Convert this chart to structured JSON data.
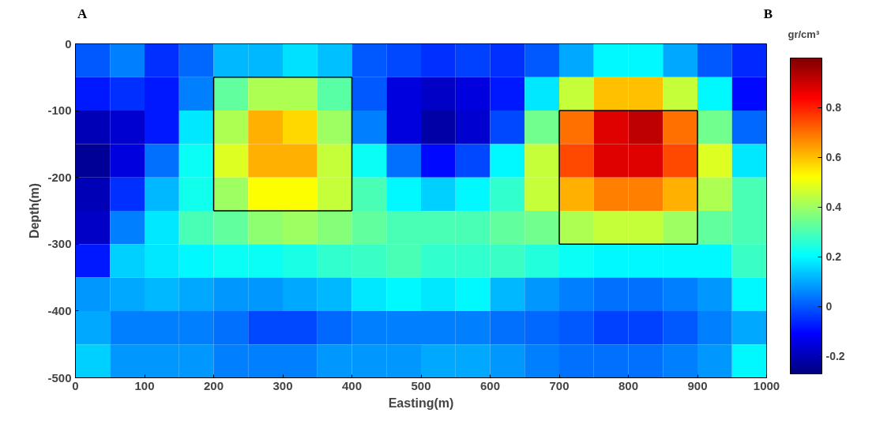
{
  "chart_data": {
    "type": "heatmap",
    "xlabel": "Easting(m)",
    "ylabel": "Depth(m)",
    "clabel": "gr/cm³",
    "x": [
      25,
      75,
      125,
      175,
      225,
      275,
      325,
      375,
      425,
      475,
      525,
      575,
      625,
      675,
      725,
      775,
      825,
      875,
      925,
      975
    ],
    "y": [
      -25,
      -75,
      -125,
      -175,
      -225,
      -275,
      -325,
      -375,
      -425,
      -475
    ],
    "xlim": [
      0,
      1000
    ],
    "xticks": [
      0,
      100,
      200,
      300,
      400,
      500,
      600,
      700,
      800,
      900,
      1000
    ],
    "ylim": [
      -500,
      0
    ],
    "yticks": [
      -500,
      -400,
      -300,
      -200,
      -100,
      0
    ],
    "clim": [
      -0.27,
      1.0
    ],
    "cticks": [
      -0.2,
      0,
      0.2,
      0.4,
      0.6,
      0.8
    ],
    "cells": [
      [
        0.0,
        0.05,
        -0.05,
        0.02,
        0.12,
        0.12,
        0.17,
        0.13,
        0.0,
        -0.02,
        -0.05,
        -0.03,
        -0.05,
        0.0,
        0.1,
        0.2,
        0.2,
        0.1,
        0.0,
        -0.06
      ],
      [
        -0.08,
        -0.05,
        -0.08,
        0.05,
        0.33,
        0.42,
        0.42,
        0.32,
        0.0,
        -0.15,
        -0.18,
        -0.15,
        -0.08,
        0.18,
        0.45,
        0.6,
        0.6,
        0.45,
        0.2,
        -0.1
      ],
      [
        -0.2,
        -0.17,
        -0.08,
        0.18,
        0.42,
        0.62,
        0.57,
        0.4,
        0.05,
        -0.15,
        -0.22,
        -0.17,
        -0.02,
        0.35,
        0.7,
        0.88,
        0.92,
        0.7,
        0.35,
        0.02
      ],
      [
        -0.24,
        -0.15,
        0.03,
        0.22,
        0.48,
        0.62,
        0.62,
        0.45,
        0.22,
        0.03,
        -0.1,
        -0.02,
        0.2,
        0.45,
        0.75,
        0.88,
        0.88,
        0.75,
        0.48,
        0.18
      ],
      [
        -0.2,
        -0.05,
        0.12,
        0.23,
        0.4,
        0.52,
        0.52,
        0.45,
        0.3,
        0.2,
        0.15,
        0.2,
        0.27,
        0.45,
        0.62,
        0.68,
        0.68,
        0.62,
        0.42,
        0.3
      ],
      [
        -0.18,
        0.05,
        0.18,
        0.3,
        0.33,
        0.38,
        0.4,
        0.37,
        0.33,
        0.3,
        0.3,
        0.3,
        0.33,
        0.35,
        0.42,
        0.45,
        0.45,
        0.4,
        0.33,
        0.3
      ],
      [
        -0.08,
        0.15,
        0.18,
        0.2,
        0.22,
        0.22,
        0.24,
        0.27,
        0.28,
        0.3,
        0.27,
        0.27,
        0.28,
        0.25,
        0.22,
        0.2,
        0.2,
        0.2,
        0.2,
        0.28
      ],
      [
        0.08,
        0.1,
        0.12,
        0.1,
        0.08,
        0.08,
        0.1,
        0.12,
        0.18,
        0.2,
        0.18,
        0.2,
        0.12,
        0.08,
        0.05,
        0.03,
        0.03,
        0.05,
        0.08,
        0.2
      ],
      [
        0.1,
        0.05,
        0.05,
        0.05,
        0.03,
        -0.02,
        -0.02,
        0.02,
        0.05,
        0.05,
        0.05,
        0.05,
        0.03,
        0.02,
        0.0,
        -0.03,
        -0.03,
        0.0,
        0.05,
        0.1
      ],
      [
        0.15,
        0.08,
        0.08,
        0.08,
        0.05,
        0.05,
        0.05,
        0.08,
        0.08,
        0.08,
        0.1,
        0.1,
        0.08,
        0.05,
        0.03,
        0.03,
        0.03,
        0.05,
        0.08,
        0.2
      ]
    ],
    "annotations": [
      "A",
      "B"
    ],
    "series": [
      {
        "type": "line",
        "color": "#000000",
        "x": [
          200,
          400
        ],
        "values": [
          -50,
          -50
        ]
      },
      {
        "type": "line",
        "color": "#000000",
        "x": [
          200,
          400
        ],
        "values": [
          -250,
          -250
        ]
      },
      {
        "type": "line",
        "color": "#000000",
        "x": [
          200,
          200
        ],
        "values": [
          -50,
          -250
        ]
      },
      {
        "type": "line",
        "color": "#000000",
        "x": [
          400,
          400
        ],
        "values": [
          -50,
          -250
        ]
      },
      {
        "type": "line",
        "color": "#000000",
        "x": [
          700,
          900
        ],
        "values": [
          -100,
          -100
        ]
      },
      {
        "type": "line",
        "color": "#000000",
        "x": [
          700,
          900
        ],
        "values": [
          -300,
          -300
        ]
      },
      {
        "type": "line",
        "color": "#000000",
        "x": [
          700,
          700
        ],
        "values": [
          -100,
          -300
        ]
      },
      {
        "type": "line",
        "color": "#000000",
        "x": [
          900,
          900
        ],
        "values": [
          -100,
          -300
        ]
      }
    ],
    "grid": false
  }
}
